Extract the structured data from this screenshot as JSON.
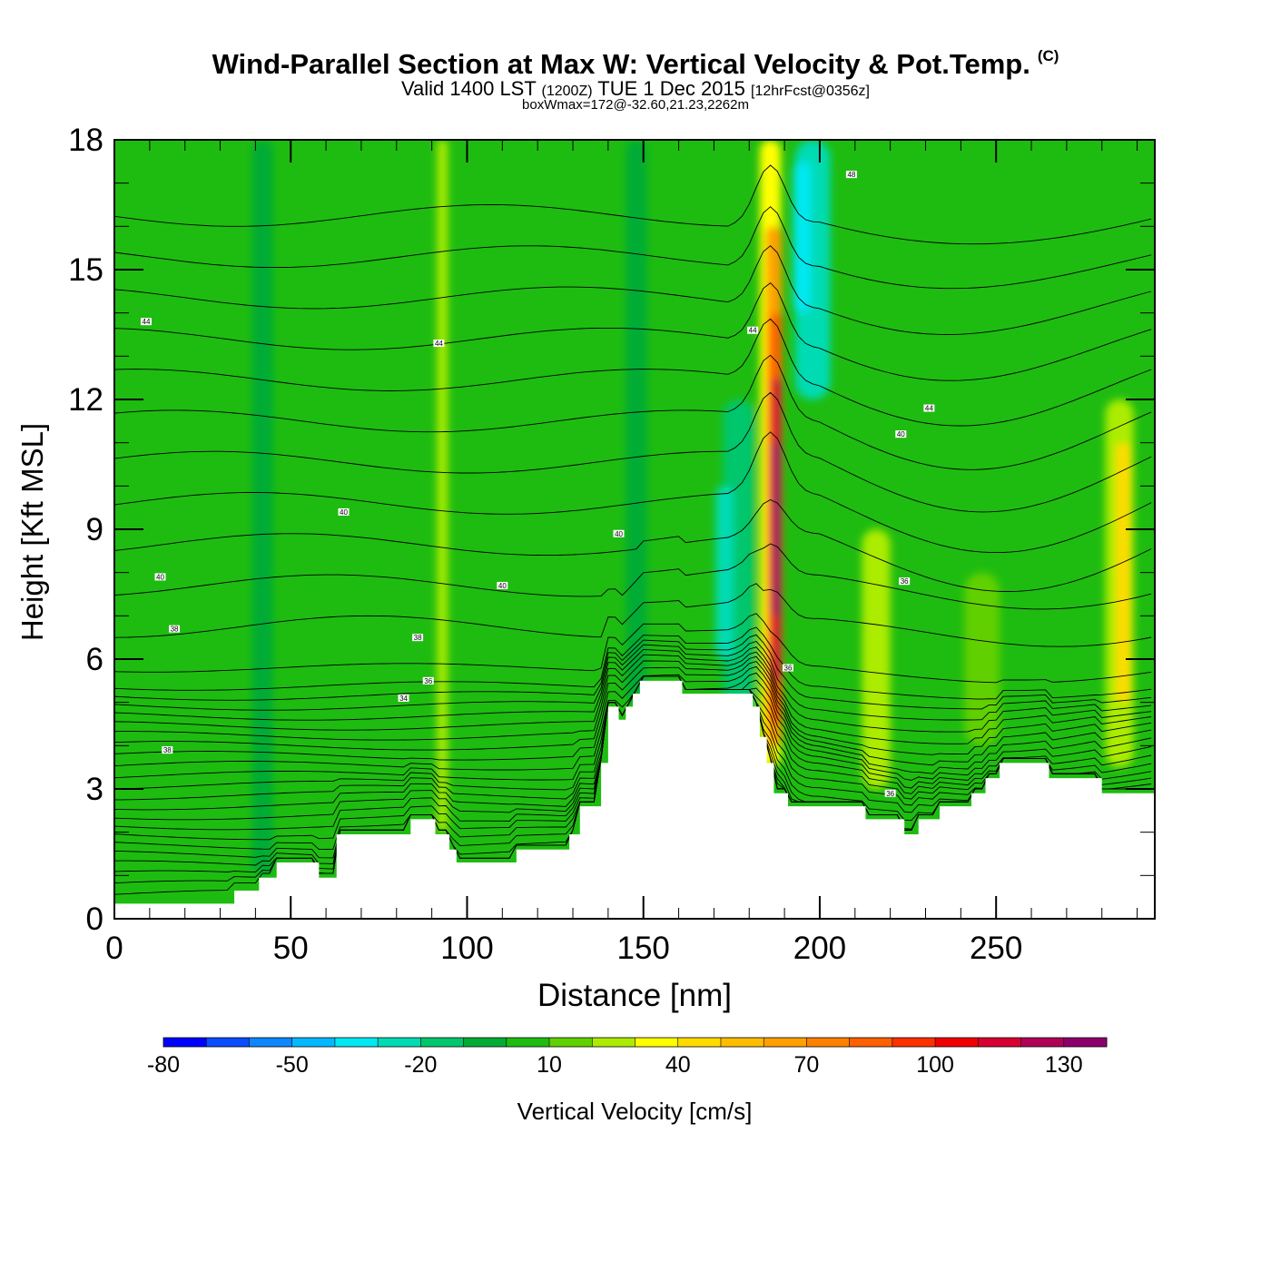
{
  "title": {
    "main": "Wind-Parallel Section at Max W: Vertical Velocity & Pot.Temp.",
    "copyright": "(C)",
    "valid_prefix": "Valid 1400 LST",
    "valid_utc": "(1200Z)",
    "valid_date": "TUE 1 Dec 2015",
    "forecast": "[12hrFcst@0356z]",
    "box_info": "boxWmax=172@-32.60,21.23,2262m"
  },
  "chart_data": {
    "type": "heatmap",
    "xlabel": "Distance [nm]",
    "ylabel": "Height [Kft MSL]",
    "xlim": [
      0,
      295
    ],
    "ylim": [
      0,
      18
    ],
    "xticks": [
      0,
      50,
      100,
      150,
      200,
      250
    ],
    "yticks": [
      0,
      3,
      6,
      9,
      12,
      15,
      18
    ],
    "background_field": 5,
    "columns": [
      {
        "x": 93,
        "w": 3,
        "ymin": 2,
        "ymax": 18,
        "v": 20
      },
      {
        "x": 42,
        "w": 6,
        "ymin": 1,
        "ymax": 18,
        "v": -2
      },
      {
        "x": 148,
        "w": 6,
        "ymin": 5,
        "ymax": 18,
        "v": -2
      },
      {
        "x": 177,
        "w": 9,
        "ymin": 4,
        "ymax": 12,
        "v": -15
      },
      {
        "x": 173,
        "w": 5,
        "ymin": 6,
        "ymax": 10,
        "v": -25
      },
      {
        "x": 198,
        "w": 10,
        "ymin": 12,
        "ymax": 18,
        "v": -25
      },
      {
        "x": 195,
        "w": 5,
        "ymin": 14,
        "ymax": 17.5,
        "v": -35
      },
      {
        "x": 216,
        "w": 8,
        "ymin": 3,
        "ymax": 9,
        "v": 20
      },
      {
        "x": 246,
        "w": 10,
        "ymin": 4,
        "ymax": 8,
        "v": 15
      },
      {
        "x": 285,
        "w": 8,
        "ymin": 3.5,
        "ymax": 12,
        "v": 25
      },
      {
        "x": 286,
        "w": 4,
        "ymin": 5,
        "ymax": 11,
        "v": 45
      },
      {
        "x": 186,
        "w": 6,
        "ymin": 3.5,
        "ymax": 18,
        "v": 35
      },
      {
        "x": 187,
        "w": 4.5,
        "ymin": 4,
        "ymax": 16,
        "v": 60
      },
      {
        "x": 187.5,
        "w": 3.6,
        "ymin": 4.5,
        "ymax": 14,
        "v": 85
      },
      {
        "x": 187.5,
        "w": 2.8,
        "ymin": 5.5,
        "ymax": 12.5,
        "v": 110
      },
      {
        "x": 187.5,
        "w": 1.8,
        "ymin": 7,
        "ymax": 11,
        "v": 135
      }
    ],
    "terrain": [
      [
        0,
        0.35
      ],
      [
        34,
        0.35
      ],
      [
        34,
        0.65
      ],
      [
        41,
        0.65
      ],
      [
        41,
        0.95
      ],
      [
        46,
        0.95
      ],
      [
        46,
        1.3
      ],
      [
        58,
        1.3
      ],
      [
        58,
        0.95
      ],
      [
        63,
        0.95
      ],
      [
        63,
        1.95
      ],
      [
        84,
        1.95
      ],
      [
        84,
        2.3
      ],
      [
        91,
        2.3
      ],
      [
        91,
        1.95
      ],
      [
        95,
        1.95
      ],
      [
        95,
        1.6
      ],
      [
        97,
        1.6
      ],
      [
        97,
        1.3
      ],
      [
        114,
        1.3
      ],
      [
        114,
        1.6
      ],
      [
        129,
        1.6
      ],
      [
        129,
        1.95
      ],
      [
        132,
        1.95
      ],
      [
        132,
        2.6
      ],
      [
        138,
        2.6
      ],
      [
        138,
        3.6
      ],
      [
        140,
        3.6
      ],
      [
        140,
        4.9
      ],
      [
        143,
        4.9
      ],
      [
        143,
        4.6
      ],
      [
        145,
        4.6
      ],
      [
        145,
        4.9
      ],
      [
        147,
        4.9
      ],
      [
        147,
        5.2
      ],
      [
        149,
        5.2
      ],
      [
        149,
        5.5
      ],
      [
        161,
        5.5
      ],
      [
        161,
        5.2
      ],
      [
        181,
        5.2
      ],
      [
        181,
        4.9
      ],
      [
        183,
        4.9
      ],
      [
        183,
        4.2
      ],
      [
        185,
        4.2
      ],
      [
        185,
        3.6
      ],
      [
        187,
        3.6
      ],
      [
        187,
        2.9
      ],
      [
        191,
        2.9
      ],
      [
        191,
        2.6
      ],
      [
        213,
        2.6
      ],
      [
        213,
        2.3
      ],
      [
        224,
        2.3
      ],
      [
        224,
        1.95
      ],
      [
        228,
        1.95
      ],
      [
        228,
        2.3
      ],
      [
        234,
        2.3
      ],
      [
        234,
        2.6
      ],
      [
        243,
        2.6
      ],
      [
        243,
        2.9
      ],
      [
        247,
        2.9
      ],
      [
        247,
        3.25
      ],
      [
        251,
        3.25
      ],
      [
        251,
        3.6
      ],
      [
        265,
        3.6
      ],
      [
        265,
        3.25
      ],
      [
        280,
        3.25
      ],
      [
        280,
        2.9
      ],
      [
        295,
        2.9
      ]
    ],
    "isentrope_labels": [
      {
        "x": 9,
        "y": 13.8,
        "label": "44"
      },
      {
        "x": 92,
        "y": 13.3,
        "label": "44"
      },
      {
        "x": 181,
        "y": 13.6,
        "label": "44"
      },
      {
        "x": 209,
        "y": 17.2,
        "label": "48"
      },
      {
        "x": 231,
        "y": 11.8,
        "label": "44"
      },
      {
        "x": 223,
        "y": 11.2,
        "label": "40"
      },
      {
        "x": 65,
        "y": 9.4,
        "label": "40"
      },
      {
        "x": 143,
        "y": 8.9,
        "label": "40"
      },
      {
        "x": 13,
        "y": 7.9,
        "label": "40"
      },
      {
        "x": 110,
        "y": 7.7,
        "label": "40"
      },
      {
        "x": 17,
        "y": 6.7,
        "label": "38"
      },
      {
        "x": 86,
        "y": 6.5,
        "label": "38"
      },
      {
        "x": 89,
        "y": 5.5,
        "label": "36"
      },
      {
        "x": 82,
        "y": 5.1,
        "label": "34"
      },
      {
        "x": 15,
        "y": 3.9,
        "label": "38"
      },
      {
        "x": 191,
        "y": 5.8,
        "label": "36"
      },
      {
        "x": 224,
        "y": 7.8,
        "label": "36"
      },
      {
        "x": 220,
        "y": 2.9,
        "label": "36"
      }
    ],
    "colorbar": {
      "label": "Vertical Velocity [cm/s]",
      "levels": [
        -80,
        -70,
        -60,
        -50,
        -40,
        -30,
        -20,
        -10,
        0,
        10,
        20,
        30,
        40,
        50,
        60,
        70,
        80,
        90,
        100,
        110,
        120,
        130,
        140
      ],
      "colors": [
        "#0000ff",
        "#0a4dff",
        "#0e86ff",
        "#03b8ff",
        "#00e8f2",
        "#00dbb4",
        "#00c66c",
        "#00ac35",
        "#1ebc10",
        "#60d000",
        "#acec00",
        "#ffff00",
        "#ffdb00",
        "#ffbd00",
        "#ffa000",
        "#ff8000",
        "#ff6000",
        "#ff3000",
        "#f00000",
        "#d80032",
        "#b00058",
        "#8c006c"
      ],
      "tick_labels": [
        "-80",
        "-50",
        "-20",
        "10",
        "40",
        "70",
        "100",
        "130"
      ]
    }
  }
}
